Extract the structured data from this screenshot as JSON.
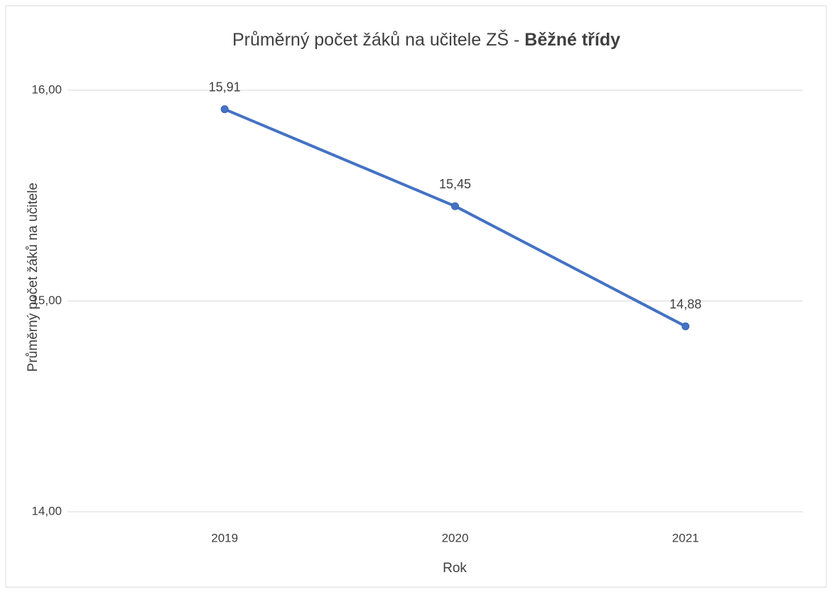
{
  "chart_data": {
    "type": "line",
    "title": "Průměrný počet žáků na učitele ZŠ -",
    "title_emphasis": "Běžné třídy",
    "x_label": "Rok",
    "y_label": "Průměrný počet žáků na učitele",
    "categories": [
      "2019",
      "2020",
      "2021"
    ],
    "series": [
      {
        "name": "Průměrný počet žáků na učitele",
        "color": "#4472c4",
        "values": [
          15.91,
          15.45,
          14.88
        ],
        "value_labels": [
          "15,91",
          "15,45",
          "14,88"
        ]
      }
    ],
    "ylim": [
      14,
      16
    ],
    "yticks": [
      {
        "value": 14,
        "label": "14,00"
      },
      {
        "value": 15,
        "label": "15,00"
      },
      {
        "value": 16,
        "label": "16,00"
      }
    ],
    "grid": true
  }
}
